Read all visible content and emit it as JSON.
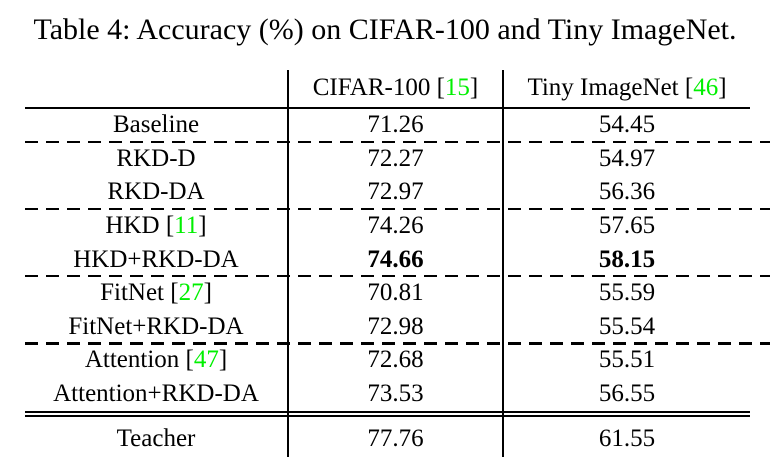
{
  "title": "Table 4: Accuracy (%) on CIFAR-100 and Tiny ImageNet.",
  "colors": {
    "text": "#000000",
    "background": "#FFFFFF",
    "citation_green": "#00F000"
  },
  "punctuation": {
    "citation_open": "[",
    "citation_close": "]"
  },
  "table": {
    "header": {
      "method_col": "",
      "col2": {
        "label": "CIFAR-100",
        "citation": "15"
      },
      "col3": {
        "label": "Tiny ImageNet",
        "citation": "46"
      }
    },
    "rows": [
      {
        "method": "Baseline",
        "citation": "",
        "cifar100": "71.26",
        "tiny_imagenet": "54.45",
        "bold": false,
        "rule_above": "solid"
      },
      {
        "method": "RKD-D",
        "citation": "",
        "cifar100": "72.27",
        "tiny_imagenet": "54.97",
        "bold": false,
        "rule_above": "dashed"
      },
      {
        "method": "RKD-DA",
        "citation": "",
        "cifar100": "72.97",
        "tiny_imagenet": "56.36",
        "bold": false,
        "rule_above": "none"
      },
      {
        "method": "HKD",
        "citation": "11",
        "cifar100": "74.26",
        "tiny_imagenet": "57.65",
        "bold": false,
        "rule_above": "dashed"
      },
      {
        "method": "HKD+RKD-DA",
        "citation": "",
        "cifar100": "74.66",
        "tiny_imagenet": "58.15",
        "bold": true,
        "rule_above": "none"
      },
      {
        "method": "FitNet",
        "citation": "27",
        "cifar100": "70.81",
        "tiny_imagenet": "55.59",
        "bold": false,
        "rule_above": "dashed"
      },
      {
        "method": "FitNet+RKD-DA",
        "citation": "",
        "cifar100": "72.98",
        "tiny_imagenet": "55.54",
        "bold": false,
        "rule_above": "none"
      },
      {
        "method": "Attention",
        "citation": "47",
        "cifar100": "72.68",
        "tiny_imagenet": "55.51",
        "bold": false,
        "rule_above": "dashed"
      },
      {
        "method": "Attention+RKD-DA",
        "citation": "",
        "cifar100": "73.53",
        "tiny_imagenet": "56.55",
        "bold": false,
        "rule_above": "none"
      },
      {
        "method": "Teacher",
        "citation": "",
        "cifar100": "77.76",
        "tiny_imagenet": "61.55",
        "bold": false,
        "rule_above": "double"
      }
    ]
  }
}
